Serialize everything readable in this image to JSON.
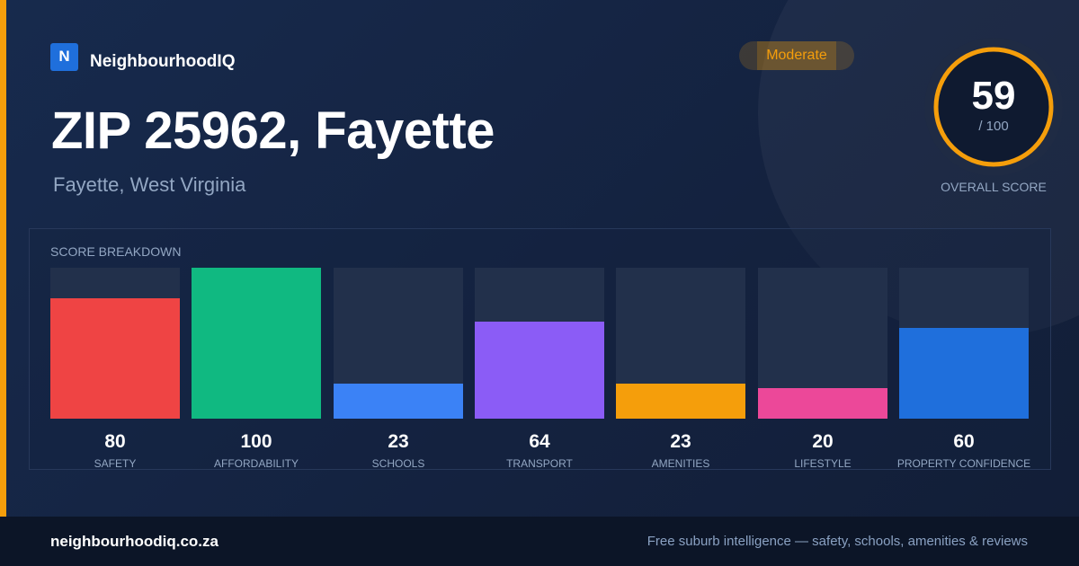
{
  "brand": {
    "logo_letter": "N",
    "name": "NeighbourhoodIQ"
  },
  "badge": {
    "label": "Moderate"
  },
  "header": {
    "title": "ZIP 25962, Fayette",
    "subtitle": "Fayette, West Virginia"
  },
  "overall": {
    "score": 59,
    "max_label": "/ 100",
    "label": "OVERALL SCORE",
    "ring_color": "#f59e0b"
  },
  "breakdown": {
    "title": "SCORE BREAKDOWN"
  },
  "chart_data": {
    "type": "bar",
    "title": "SCORE BREAKDOWN",
    "ylim": [
      0,
      100
    ],
    "categories": [
      "SAFETY",
      "AFFORDABILITY",
      "SCHOOLS",
      "TRANSPORT",
      "AMENITIES",
      "LIFESTYLE",
      "PROPERTY CONFIDENCE"
    ],
    "values": [
      80,
      100,
      23,
      64,
      23,
      20,
      60
    ],
    "colors": [
      "#ef4444",
      "#10b981",
      "#3b82f6",
      "#8b5cf6",
      "#f59e0b",
      "#ec4899",
      "#1f6fdc"
    ]
  },
  "footer": {
    "url": "neighbourhoodiq.co.za",
    "tagline": "Free suburb intelligence — safety, schools, amenities & reviews"
  }
}
